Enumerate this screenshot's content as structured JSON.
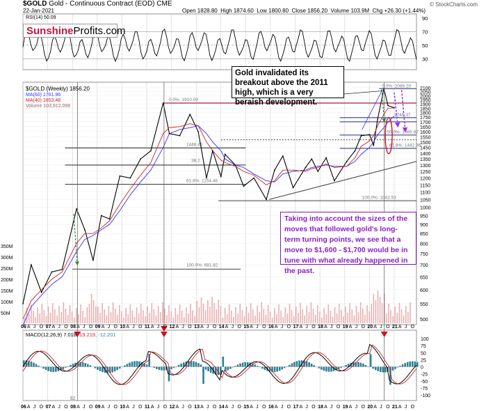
{
  "header": {
    "symbol": "$GOLD",
    "description": "Gold - Continuous Contract (EOD)",
    "exchange": "CME",
    "date": "22-Jan-2021",
    "open": "Open 1828.80",
    "high": "High 1874.60",
    "low": "Low 1800.80",
    "close": "Close 1856.20",
    "volume": "Volume 103.9M",
    "change": "Chg +26.30 (+1.44%)",
    "watermark": "© StockCharts.com"
  },
  "logo": {
    "part1": "Sunshine",
    "part2": "Profits.com"
  },
  "rsi_panel": {
    "label": "RSI(14) 50.09",
    "ticks": [
      "90",
      "70",
      "50",
      "30"
    ]
  },
  "price_panel": {
    "legend_title": "$GOLD (Weekly) 1856.20",
    "legend_ma60": "MA(60) 1761.96",
    "legend_ma40": "MA(40) 1853.48",
    "legend_volume": "Volume 103,912,096",
    "ticks": [
      "2100",
      "2050",
      "2000",
      "1950",
      "1900",
      "1850",
      "1800",
      "1750",
      "1700",
      "1650",
      "1600",
      "1550",
      "1500",
      "1450",
      "1400",
      "1350",
      "1300",
      "1250",
      "1200",
      "1150",
      "1100",
      "1050",
      "1000",
      "950",
      "900",
      "850",
      "800",
      "750",
      "700",
      "650",
      "600",
      "550",
      "500"
    ],
    "volume_ticks": [
      "350M",
      "300M",
      "250M",
      "200M",
      "150M",
      "100M",
      "50M"
    ],
    "fib_labels": [
      "0.0%: 1910.09",
      "100.0%: 681.82",
      "61.8%: 1154.46",
      "1446.45",
      "38.2",
      "100.0%: 1042.53",
      "0.0%: 2089.20",
      "1745.37",
      "50.0%: 1565.87",
      "61.8%: 1442.36"
    ],
    "colors": {
      "price": "#000000",
      "ma60": "#3030ff",
      "ma40": "#cc2222",
      "volume": "#e8b0b0",
      "fib": "#1a2a8c",
      "resistance": "#a0003c",
      "projection": "#9b30e0",
      "support": "#555555"
    }
  },
  "macd_panel": {
    "label": "MACD(12,26,9) 7.018, 19.219, -12.201",
    "label_parts": [
      "MACD(12,26,9)",
      " 7.018, ",
      "19.219",
      ", -12.201"
    ],
    "ticks": [
      "100",
      "75",
      "50",
      "25",
      "0",
      "-25",
      "-50",
      "-75",
      "-100"
    ],
    "bottom_note": "92"
  },
  "x_axis": [
    "06",
    "A",
    "J",
    "O",
    "07",
    "A",
    "J",
    "O",
    "08",
    "A",
    "J",
    "O",
    "09",
    "A",
    "J",
    "O",
    "10",
    "A",
    "J",
    "O",
    "11",
    "A",
    "J",
    "O",
    "12",
    "A",
    "J",
    "O",
    "13",
    "A",
    "J",
    "O",
    "14",
    "A",
    "J",
    "O",
    "15",
    "A",
    "J",
    "O",
    "16",
    "A",
    "J",
    "O",
    "17",
    "A",
    "J",
    "O",
    "18",
    "A",
    "J",
    "O",
    "19",
    "A",
    "J",
    "O",
    "20",
    "A",
    "J",
    "O",
    "21",
    "A",
    "J",
    "O"
  ],
  "annotations": {
    "note1": "Gold invalidated its breakout above the 2011 high, which is a very beraish development.",
    "note2": "Taking into account the sizes of the moves that followed gold's long-term turning points, we see that a move to $1,600 - $1,700 would be in tune with what already happened in the past."
  },
  "chart_data": {
    "type": "line",
    "title": "$GOLD Gold - Continuous Contract (EOD) CME",
    "x": [
      "2006-01",
      "2006-05",
      "2006-10",
      "2007-03",
      "2007-08",
      "2008-03",
      "2008-07",
      "2008-11",
      "2009-03",
      "2009-07",
      "2009-12",
      "2010-05",
      "2010-10",
      "2011-03",
      "2011-09",
      "2011-12",
      "2012-05",
      "2012-10",
      "2013-02",
      "2013-06",
      "2013-09",
      "2014-01",
      "2014-03",
      "2014-08",
      "2014-12",
      "2015-05",
      "2015-11",
      "2016-03",
      "2016-07",
      "2016-12",
      "2017-06",
      "2017-09",
      "2017-12",
      "2018-04",
      "2018-08",
      "2019-02",
      "2019-06",
      "2019-09",
      "2020-01",
      "2020-03",
      "2020-05",
      "2020-08",
      "2020-10",
      "2021-01"
    ],
    "series": [
      {
        "name": "$GOLD (Weekly)",
        "values": [
          550,
          700,
          590,
          670,
          680,
          990,
          870,
          720,
          950,
          930,
          1215,
          1200,
          1350,
          1420,
          1910,
          1580,
          1560,
          1780,
          1600,
          1200,
          1420,
          1210,
          1390,
          1300,
          1140,
          1200,
          1050,
          1260,
          1375,
          1130,
          1280,
          1350,
          1250,
          1360,
          1180,
          1330,
          1420,
          1560,
          1570,
          1470,
          1730,
          2089,
          1880,
          1856
        ]
      },
      {
        "name": "MA(60)",
        "values": [
          480,
          540,
          580,
          620,
          650,
          760,
          820,
          840,
          870,
          900,
          980,
          1080,
          1170,
          1260,
          1450,
          1580,
          1620,
          1640,
          1660,
          1580,
          1500,
          1420,
          1350,
          1300,
          1280,
          1230,
          1180,
          1170,
          1230,
          1250,
          1260,
          1280,
          1290,
          1300,
          1290,
          1290,
          1330,
          1390,
          1450,
          1500,
          1570,
          1640,
          1700,
          1762
        ]
      },
      {
        "name": "MA(40)",
        "values": [
          500,
          560,
          600,
          640,
          670,
          800,
          850,
          850,
          880,
          920,
          1020,
          1120,
          1220,
          1320,
          1580,
          1640,
          1650,
          1680,
          1660,
          1500,
          1420,
          1340,
          1320,
          1290,
          1250,
          1220,
          1150,
          1180,
          1260,
          1260,
          1250,
          1270,
          1280,
          1310,
          1280,
          1290,
          1360,
          1460,
          1510,
          1560,
          1660,
          1780,
          1850,
          1853
        ]
      }
    ],
    "rsi": {
      "name": "RSI(14)",
      "last": 50.09,
      "ylim": [
        20,
        90
      ]
    },
    "macd": {
      "name": "MACD(12,26,9)",
      "values": [
        7.018,
        19.219,
        -12.201
      ],
      "ylim": [
        -100,
        110
      ]
    },
    "ylim": [
      500,
      2100
    ],
    "xlabel": "",
    "ylabel": "",
    "grid": true,
    "legend": "top-left"
  }
}
